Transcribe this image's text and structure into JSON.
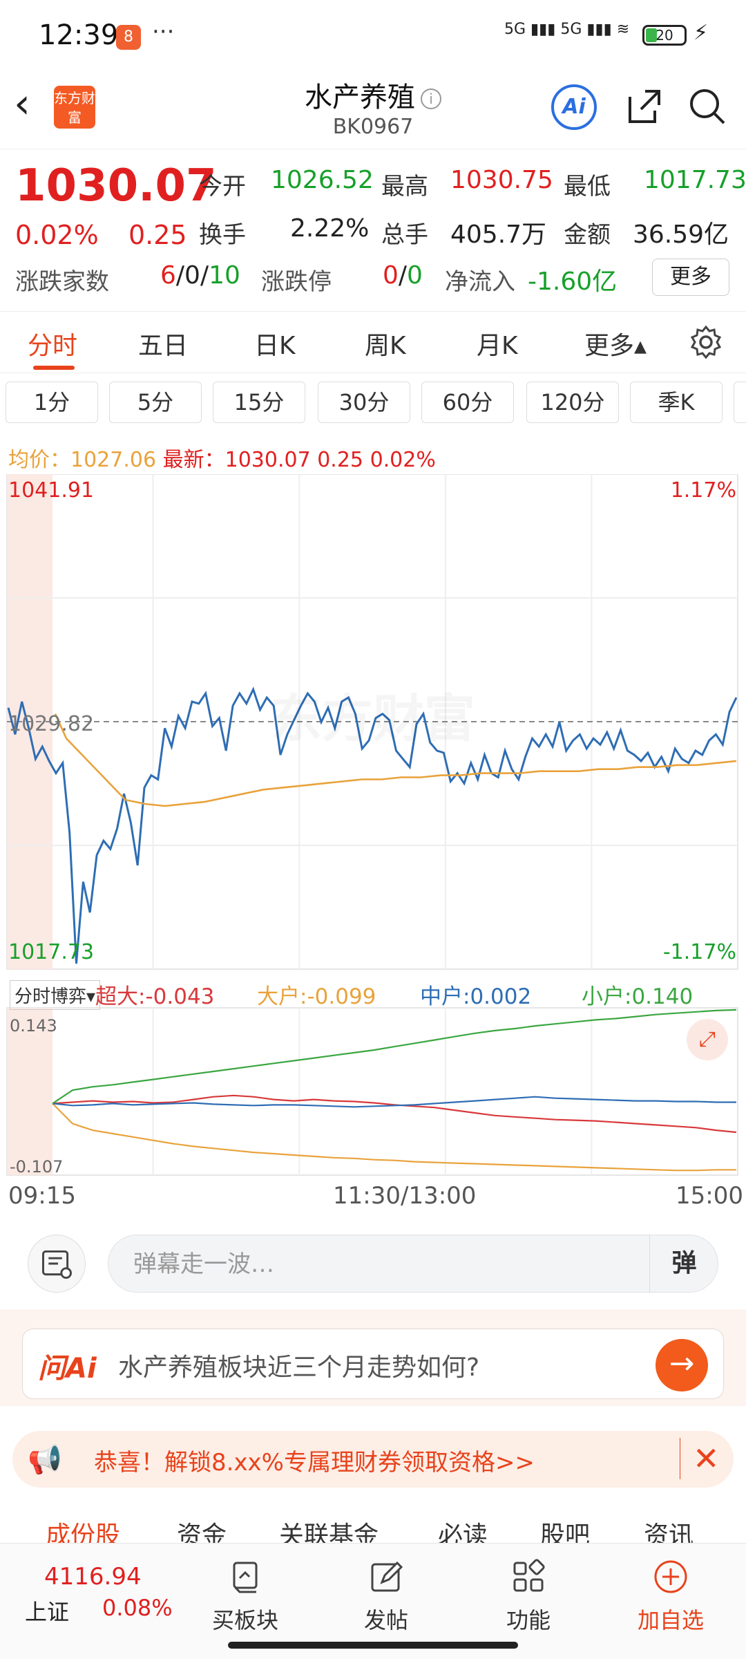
{
  "status_bar": {
    "time": "12:39",
    "app_badge": "8",
    "more": "···",
    "signal": "5G ▮▮▮ 5G ▮▮▮ ≋",
    "battery": "20"
  },
  "header": {
    "title": "水产养殖",
    "code": "BK0967",
    "logo": "东方财富",
    "ai_label": "Ai"
  },
  "quote": {
    "price": "1030.07",
    "change_pct": "0.02%",
    "change": "0.25",
    "open_label": "今开",
    "open": "1026.52",
    "high_label": "最高",
    "high": "1030.75",
    "low_label": "最低",
    "low": "1017.73",
    "turnover_label": "换手",
    "turnover": "2.22%",
    "volume_label": "总手",
    "volume": "405.7万",
    "amount_label": "金额",
    "amount": "36.59亿",
    "updown_label": "涨跌家数",
    "up": "6",
    "flat": "0",
    "down": "10",
    "limit_label": "涨跌停",
    "limit_up": "0",
    "limit_down": "0",
    "netflow_label": "净流入",
    "netflow": "-1.60亿",
    "more_button": "更多"
  },
  "tabs": [
    "分时",
    "五日",
    "日K",
    "周K",
    "月K",
    "更多▴"
  ],
  "intervals": [
    "1分",
    "5分",
    "15分",
    "30分",
    "60分",
    "120分",
    "季K"
  ],
  "avg_line": {
    "avg_label": "均价：",
    "avg": "1027.06",
    "latest_label": "最新：",
    "latest": "1030.07",
    "change": "0.25",
    "pct": "0.02%"
  },
  "chart_data": [
    {
      "type": "line",
      "y_top": "1041.91",
      "y_mid": "1029.82",
      "y_bottom": "1017.73",
      "pct_top": "1.17%",
      "pct_bottom": "-1.17%",
      "ylim": [
        1017.73,
        1041.91
      ],
      "x_labels": [
        "09:15",
        "11:30/13:00",
        "15:00"
      ],
      "watermark": "东方财富",
      "series": [
        {
          "color": "#2e6db4",
          "values": [
            1030.5,
            1029.2,
            1030.8,
            1029.5,
            1028.0,
            1028.6,
            1027.9,
            1027.3,
            1027.8,
            1024.4,
            1018.0,
            1022.0,
            1020.5,
            1023.3,
            1024.0,
            1023.6,
            1024.6,
            1026.3,
            1024.9,
            1022.8,
            1026.6,
            1027.2,
            1027.0,
            1029.5,
            1028.6,
            1030.1,
            1029.5,
            1030.8,
            1030.7,
            1031.2,
            1029.6,
            1030.0,
            1028.4,
            1030.6,
            1031.2,
            1030.7,
            1031.4,
            1030.4,
            1031.0,
            1030.6,
            1028.2,
            1029.2,
            1029.9,
            1030.6,
            1031.2,
            1030.8,
            1029.8,
            1030.5,
            1029.5,
            1030.8,
            1031.0,
            1030.2,
            1028.5,
            1028.9,
            1030.0,
            1030.2,
            1029.9,
            1028.4,
            1028.0,
            1027.6,
            1029.7,
            1030.2,
            1028.8,
            1028.4,
            1028.3,
            1026.9,
            1027.3,
            1026.8,
            1027.8,
            1027.0,
            1028.2,
            1027.3,
            1027.1,
            1028.4,
            1027.5,
            1027.0,
            1028.1,
            1029.0,
            1028.6,
            1029.2,
            1028.6,
            1029.8,
            1028.4,
            1028.9,
            1029.2,
            1028.5,
            1029.0,
            1028.7,
            1029.3,
            1028.5,
            1029.4,
            1028.4,
            1028.2,
            1027.9,
            1028.3,
            1027.6,
            1028.1,
            1027.4,
            1028.5,
            1028.0,
            1027.8,
            1028.4,
            1028.2,
            1028.9,
            1029.2,
            1028.7,
            1030.3,
            1031.0
          ]
        },
        {
          "color": "#e9a23b",
          "values": [
            1030.2,
            1029.0,
            1027.0,
            1026.0,
            1025.8,
            1025.7,
            1025.8,
            1025.9,
            1026.1,
            1026.3,
            1026.5,
            1026.6,
            1026.7,
            1026.8,
            1026.9,
            1027.0,
            1027.0,
            1027.1,
            1027.1,
            1027.2,
            1027.2,
            1027.3,
            1027.3,
            1027.3,
            1027.4,
            1027.4,
            1027.4,
            1027.5,
            1027.5,
            1027.6,
            1027.6,
            1027.7,
            1027.7,
            1027.8,
            1027.9
          ]
        }
      ]
    },
    {
      "type": "line",
      "ylim": [
        -0.107,
        0.143
      ],
      "y_top": "0.143",
      "y_bottom": "-0.107",
      "selector": "分时博弈▾",
      "series": [
        {
          "name": "超大",
          "value": "-0.043",
          "color": "#d9383a",
          "values": [
            0,
            0.002,
            0.004,
            0.002,
            0.003,
            0.001,
            0.002,
            0.006,
            0.01,
            0.012,
            0.01,
            0.006,
            0.004,
            0.006,
            0.004,
            0.003,
            0.001,
            -0.002,
            -0.004,
            -0.006,
            -0.01,
            -0.014,
            -0.018,
            -0.02,
            -0.022,
            -0.024,
            -0.025,
            -0.026,
            -0.028,
            -0.03,
            -0.032,
            -0.034,
            -0.036,
            -0.04,
            -0.043
          ]
        },
        {
          "name": "大户",
          "value": "-0.099",
          "color": "#e9a23b",
          "values": [
            0,
            -0.03,
            -0.04,
            -0.045,
            -0.05,
            -0.055,
            -0.06,
            -0.064,
            -0.067,
            -0.07,
            -0.073,
            -0.075,
            -0.077,
            -0.079,
            -0.081,
            -0.082,
            -0.084,
            -0.085,
            -0.087,
            -0.088,
            -0.089,
            -0.09,
            -0.091,
            -0.092,
            -0.093,
            -0.094,
            -0.095,
            -0.096,
            -0.097,
            -0.098,
            -0.099,
            -0.1,
            -0.1,
            -0.099,
            -0.099
          ]
        },
        {
          "name": "中户",
          "value": "0.002",
          "color": "#2e6db4",
          "values": [
            0,
            -0.003,
            -0.002,
            0,
            -0.002,
            -0.001,
            0,
            0.001,
            -0.001,
            -0.002,
            -0.003,
            -0.002,
            -0.002,
            -0.003,
            -0.004,
            -0.005,
            -0.004,
            -0.003,
            -0.002,
            0,
            0.002,
            0.004,
            0.006,
            0.008,
            0.01,
            0.008,
            0.007,
            0.006,
            0.005,
            0.004,
            0.004,
            0.003,
            0.003,
            0.002,
            0.002
          ]
        },
        {
          "name": "小户",
          "value": "0.140",
          "color": "#3aa640",
          "values": [
            0,
            0.02,
            0.025,
            0.028,
            0.032,
            0.036,
            0.04,
            0.044,
            0.048,
            0.052,
            0.056,
            0.06,
            0.064,
            0.068,
            0.072,
            0.076,
            0.08,
            0.085,
            0.09,
            0.095,
            0.1,
            0.105,
            0.109,
            0.112,
            0.116,
            0.119,
            0.122,
            0.125,
            0.127,
            0.13,
            0.133,
            0.135,
            0.137,
            0.139,
            0.14
          ]
        }
      ]
    }
  ],
  "danmu": {
    "placeholder": "弹幕走一波…",
    "button": "弹"
  },
  "ask": {
    "logo": "问Ai",
    "text": "水产养殖板块近三个月走势如何?"
  },
  "promo": {
    "text": "恭喜！解锁8.xx%专属理财券领取资格>>"
  },
  "subtabs": [
    "成份股",
    "资金",
    "关联基金",
    "必读",
    "股吧",
    "资讯"
  ],
  "bottom": {
    "index_value": "4116.94",
    "index_name": "上证",
    "index_pct": "0.08%",
    "nav": [
      "买板块",
      "发帖",
      "功能",
      "加自选"
    ]
  },
  "colors": {
    "up": "#e02020",
    "down": "#17a02a",
    "accent": "#e8431c",
    "price_line": "#2e6db4",
    "avg_line": "#e9a23b"
  }
}
